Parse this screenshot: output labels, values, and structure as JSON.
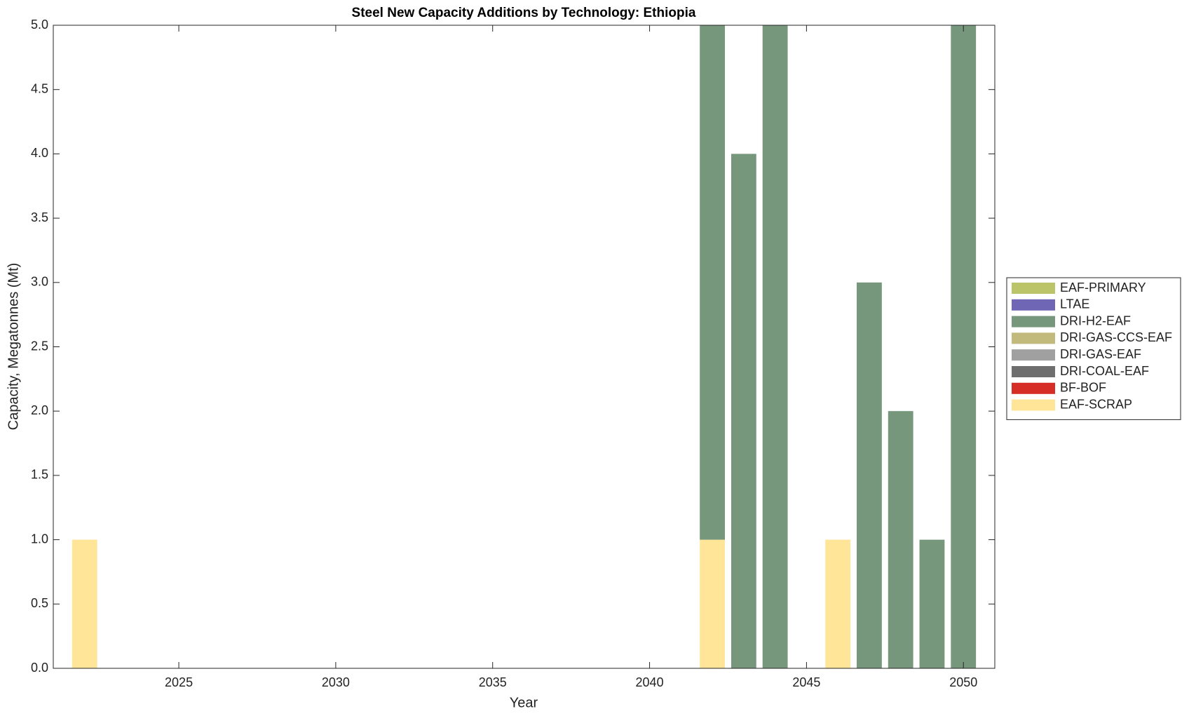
{
  "chart_data": {
    "type": "bar",
    "stacked": true,
    "title": "Steel New Capacity Additions by Technology: Ethiopia",
    "x_label": "Year",
    "y_label": "Capacity, Megatonnes (Mt)",
    "x": [
      2022,
      2023,
      2024,
      2025,
      2026,
      2027,
      2028,
      2029,
      2030,
      2031,
      2032,
      2033,
      2034,
      2035,
      2036,
      2037,
      2038,
      2039,
      2040,
      2041,
      2042,
      2043,
      2044,
      2045,
      2046,
      2047,
      2048,
      2049,
      2050
    ],
    "series": [
      {
        "name": "EAF-PRIMARY",
        "color": "#bcc46a",
        "values": [
          0,
          0,
          0,
          0,
          0,
          0,
          0,
          0,
          0,
          0,
          0,
          0,
          0,
          0,
          0,
          0,
          0,
          0,
          0,
          0,
          0,
          0,
          0,
          0,
          0,
          0,
          0,
          0,
          0
        ]
      },
      {
        "name": "LTAE",
        "color": "#6f66b5",
        "values": [
          0,
          0,
          0,
          0,
          0,
          0,
          0,
          0,
          0,
          0,
          0,
          0,
          0,
          0,
          0,
          0,
          0,
          0,
          0,
          0,
          0,
          0,
          0,
          0,
          0,
          0,
          0,
          0,
          0
        ]
      },
      {
        "name": "DRI-H2-EAF",
        "color": "#76977b",
        "values": [
          0,
          0,
          0,
          0,
          0,
          0,
          0,
          0,
          0,
          0,
          0,
          0,
          0,
          0,
          0,
          0,
          0,
          0,
          0,
          0,
          4,
          4,
          5,
          0,
          0,
          3,
          2,
          1,
          5
        ]
      },
      {
        "name": "DRI-GAS-CCS-EAF",
        "color": "#c2b97c",
        "values": [
          0,
          0,
          0,
          0,
          0,
          0,
          0,
          0,
          0,
          0,
          0,
          0,
          0,
          0,
          0,
          0,
          0,
          0,
          0,
          0,
          0,
          0,
          0,
          0,
          0,
          0,
          0,
          0,
          0
        ]
      },
      {
        "name": "DRI-GAS-EAF",
        "color": "#a0a0a0",
        "values": [
          0,
          0,
          0,
          0,
          0,
          0,
          0,
          0,
          0,
          0,
          0,
          0,
          0,
          0,
          0,
          0,
          0,
          0,
          0,
          0,
          0,
          0,
          0,
          0,
          0,
          0,
          0,
          0,
          0
        ]
      },
      {
        "name": "DRI-COAL-EAF",
        "color": "#6e6e6e",
        "values": [
          0,
          0,
          0,
          0,
          0,
          0,
          0,
          0,
          0,
          0,
          0,
          0,
          0,
          0,
          0,
          0,
          0,
          0,
          0,
          0,
          0,
          0,
          0,
          0,
          0,
          0,
          0,
          0,
          0
        ]
      },
      {
        "name": "BF-BOF",
        "color": "#d62d27",
        "values": [
          0,
          0,
          0,
          0,
          0,
          0,
          0,
          0,
          0,
          0,
          0,
          0,
          0,
          0,
          0,
          0,
          0,
          0,
          0,
          0,
          0,
          0,
          0,
          0,
          0,
          0,
          0,
          0,
          0
        ]
      },
      {
        "name": "EAF-SCRAP",
        "color": "#fee597",
        "values": [
          1,
          0,
          0,
          0,
          0,
          0,
          0,
          0,
          0,
          0,
          0,
          0,
          0,
          0,
          0,
          0,
          0,
          0,
          0,
          0,
          1,
          0,
          0,
          0,
          1,
          0,
          0,
          0,
          0
        ]
      }
    ],
    "xlim": [
      2021,
      2051
    ],
    "xticks": [
      2025,
      2030,
      2035,
      2040,
      2045,
      2050
    ],
    "ylim": [
      0,
      5
    ],
    "yticks": [
      {
        "value": 0,
        "label": "0.0"
      },
      {
        "value": 0.5,
        "label": "0.5"
      },
      {
        "value": 1,
        "label": "1.0"
      },
      {
        "value": 1.5,
        "label": "1.5"
      },
      {
        "value": 2,
        "label": "2.0"
      },
      {
        "value": 2.5,
        "label": "2.5"
      },
      {
        "value": 3,
        "label": "3.0"
      },
      {
        "value": 3.5,
        "label": "3.5"
      },
      {
        "value": 4,
        "label": "4.0"
      },
      {
        "value": 4.5,
        "label": "4.5"
      },
      {
        "value": 5,
        "label": "5.0"
      }
    ],
    "legend": "right"
  }
}
